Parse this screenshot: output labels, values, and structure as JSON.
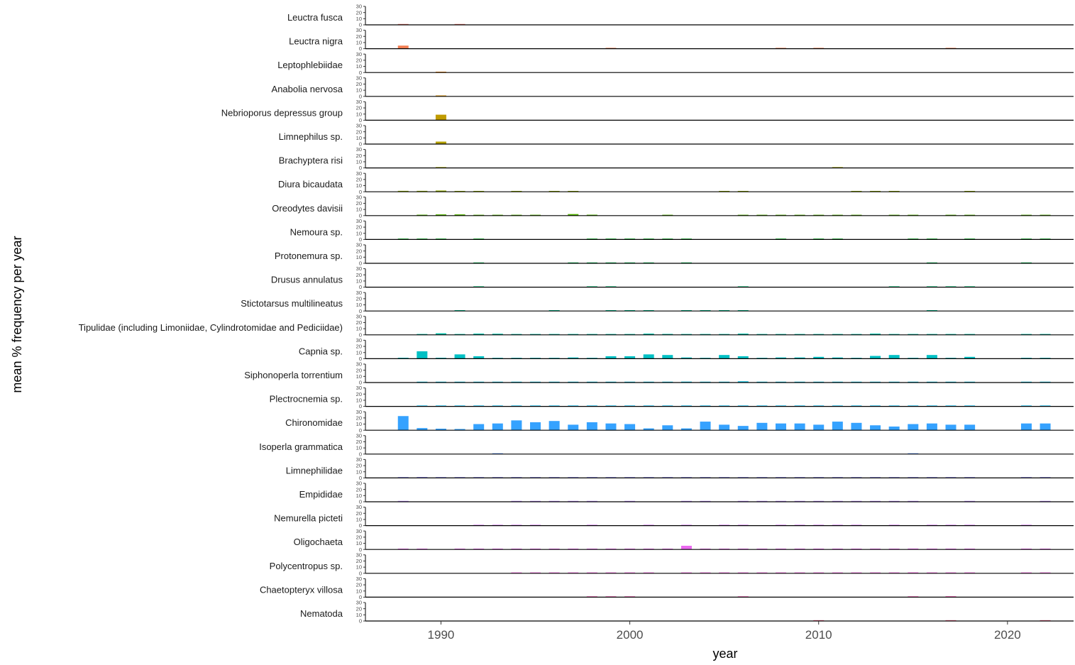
{
  "chart_data": {
    "type": "bar",
    "layout": "small-multiples",
    "xlabel": "year",
    "ylabel": "mean % frequency per year",
    "xlim": [
      1986,
      2023.5
    ],
    "xticks": [
      1990,
      2000,
      2010,
      2020
    ],
    "ylim": [
      0,
      30
    ],
    "yticks": [
      0,
      10,
      20,
      30
    ],
    "grid": false,
    "legend": "none",
    "years": [
      1988,
      1989,
      1990,
      1991,
      1992,
      1993,
      1994,
      1995,
      1996,
      1997,
      1998,
      1999,
      2000,
      2001,
      2002,
      2003,
      2004,
      2005,
      2006,
      2007,
      2008,
      2009,
      2010,
      2011,
      2012,
      2013,
      2014,
      2015,
      2016,
      2017,
      2018,
      2021,
      2022
    ],
    "series": [
      {
        "name": "Leuctra fusca",
        "color": "#F8766D",
        "values": [
          0.4,
          0,
          0,
          0.3,
          0,
          0,
          0,
          0,
          0,
          0,
          0,
          0,
          0,
          0,
          0,
          0,
          0,
          0,
          0,
          0,
          0,
          0,
          0,
          0,
          0,
          0,
          0,
          0,
          0,
          0,
          0,
          0,
          0
        ]
      },
      {
        "name": "Leuctra nigra",
        "color": "#F27D52",
        "values": [
          5,
          0,
          0,
          0,
          0,
          0,
          0,
          0,
          0,
          0,
          0,
          0.4,
          0,
          0,
          0,
          0,
          0,
          0,
          0,
          0,
          0.3,
          0,
          0.3,
          0,
          0,
          0,
          0,
          0,
          0,
          0.3,
          0,
          0,
          0
        ]
      },
      {
        "name": "Leptophlebiidae",
        "color": "#E7861B",
        "values": [
          0,
          0,
          0.3,
          0,
          0,
          0,
          0,
          0,
          0,
          0,
          0,
          0,
          0,
          0,
          0,
          0,
          0,
          0,
          0,
          0,
          0,
          0,
          0,
          0,
          0,
          0,
          0,
          0,
          0,
          0,
          0,
          0,
          0
        ]
      },
      {
        "name": "Anabolia nervosa",
        "color": "#DB8E00",
        "values": [
          0,
          0,
          1.5,
          0,
          0,
          0,
          0,
          0,
          0,
          0,
          0,
          0,
          0,
          0,
          0,
          0,
          0,
          0,
          0,
          0,
          0,
          0,
          0,
          0,
          0,
          0,
          0,
          0,
          0,
          0,
          0,
          0,
          0
        ]
      },
      {
        "name": "Nebrioporus depressus group",
        "color": "#C09B00",
        "values": [
          0,
          0,
          9,
          0,
          0,
          0,
          0,
          0,
          0,
          0,
          0,
          0,
          0,
          0,
          0,
          0,
          0,
          0,
          0,
          0,
          0,
          0,
          0,
          0,
          0,
          0,
          0,
          0,
          0,
          0,
          0,
          0,
          0
        ]
      },
      {
        "name": "Limnephilus sp.",
        "color": "#B3A000",
        "values": [
          0,
          0,
          4,
          0,
          0,
          0,
          0,
          0,
          0,
          0,
          0,
          0,
          0,
          0,
          0,
          0,
          0,
          0,
          0,
          0,
          0,
          0,
          0,
          0,
          0,
          0,
          0,
          0,
          0,
          0,
          0,
          0,
          0
        ]
      },
      {
        "name": "Brachyptera risi",
        "color": "#A3A500",
        "values": [
          0,
          0,
          0.4,
          0,
          0,
          0,
          0,
          0,
          0,
          0,
          0,
          0,
          0,
          0,
          0,
          0,
          0,
          0,
          0,
          0,
          0,
          0,
          0,
          0.4,
          0,
          0,
          0,
          0,
          0,
          0,
          0,
          0,
          0
        ]
      },
      {
        "name": "Diura bicaudata",
        "color": "#8FAA00",
        "values": [
          1.5,
          1.5,
          2,
          0.5,
          0.4,
          0,
          0.4,
          0,
          0.3,
          0.3,
          0,
          0,
          0,
          0,
          0,
          0,
          0,
          0.3,
          0.4,
          0,
          0,
          0,
          0,
          0,
          0.4,
          0.4,
          0.4,
          0,
          0,
          0,
          0.3,
          0,
          0
        ]
      },
      {
        "name": "Oreodytes davisii",
        "color": "#53B400",
        "values": [
          0,
          1.5,
          2,
          2,
          1.2,
          1,
          1,
          1,
          0,
          2.5,
          1.5,
          0,
          0,
          0,
          0.8,
          0,
          0,
          0,
          1,
          1,
          1,
          1,
          1,
          0.5,
          1,
          0,
          1,
          1,
          0,
          1,
          0.5,
          1,
          1
        ]
      },
      {
        "name": "Nemoura sp.",
        "color": "#00B81F",
        "values": [
          0.3,
          0.3,
          0.4,
          0,
          0.3,
          0,
          0,
          0,
          0,
          0,
          0.4,
          0.4,
          0.4,
          0.3,
          0.3,
          0.3,
          0,
          0,
          0,
          0,
          0.3,
          0,
          0.3,
          0.3,
          0,
          0,
          0,
          0.3,
          0.3,
          0,
          0.3,
          0.3,
          0.3
        ]
      },
      {
        "name": "Protonemura sp.",
        "color": "#00BB4E",
        "values": [
          0,
          0,
          0,
          0,
          0.4,
          0,
          0,
          0,
          0,
          0.3,
          0.3,
          0.3,
          0.3,
          0.3,
          0,
          0.3,
          0,
          0,
          0,
          0,
          0,
          0,
          0,
          0,
          0,
          0,
          0,
          0,
          0.3,
          0,
          0,
          0.5,
          0
        ]
      },
      {
        "name": "Drusus annulatus",
        "color": "#00BE70",
        "values": [
          0,
          0,
          0,
          0,
          0.5,
          0,
          0,
          0,
          0,
          0,
          0.3,
          0.5,
          0,
          0,
          0,
          0,
          0,
          0,
          0.4,
          0,
          0,
          0,
          0,
          0,
          0,
          0,
          0.4,
          0,
          0.4,
          0.4,
          0.4,
          0,
          0
        ]
      },
      {
        "name": "Stictotarsus multilineatus",
        "color": "#00C08E",
        "values": [
          0,
          0,
          0,
          0.4,
          0,
          0,
          0,
          0,
          1,
          0,
          0,
          1,
          1,
          1,
          0,
          1,
          0.5,
          1,
          0.4,
          0,
          0,
          0,
          0,
          0,
          0,
          0,
          0,
          0,
          0.5,
          0,
          0,
          0,
          0
        ]
      },
      {
        "name": "Tipulidae (including Limoniidae, Cylindrotomidae and Pediciidae)",
        "color": "#00C1AA",
        "values": [
          0,
          1,
          2.5,
          1.3,
          2,
          1.8,
          0.5,
          0.5,
          0.5,
          1,
          0.5,
          1,
          0.8,
          2,
          1.5,
          1,
          0.5,
          1,
          2,
          0.5,
          0.5,
          1,
          1,
          0.5,
          0.5,
          2,
          1,
          0.5,
          1,
          1,
          1,
          0.5,
          0.5
        ]
      },
      {
        "name": "Capnia sp.",
        "color": "#00C0C4",
        "values": [
          1.5,
          12,
          1.5,
          7,
          4,
          0.5,
          0.5,
          1,
          1,
          2,
          0.5,
          4,
          4,
          7,
          6,
          2,
          1,
          6,
          4,
          0.5,
          2,
          2,
          3,
          2,
          1,
          4.5,
          6,
          0.5,
          6,
          1,
          3,
          1,
          1
        ]
      },
      {
        "name": "Siphonoperla torrentium",
        "color": "#00BDDC",
        "values": [
          0,
          0.5,
          0.5,
          0.5,
          0.5,
          1,
          0.5,
          0.5,
          0.5,
          1,
          0.5,
          0.5,
          0.5,
          0.5,
          1,
          1.5,
          0.5,
          0.5,
          2,
          0.8,
          0.5,
          0.5,
          0.5,
          0.5,
          0.5,
          0.5,
          0.5,
          0.5,
          0.5,
          0.5,
          0.5,
          0.5,
          0.5
        ]
      },
      {
        "name": "Plectrocnemia sp.",
        "color": "#00B8F0",
        "values": [
          0,
          0.5,
          1,
          0.5,
          0.5,
          0.5,
          1,
          0.5,
          0.5,
          0.5,
          0.5,
          1,
          1,
          1,
          0.5,
          0.5,
          0.5,
          0.5,
          0.5,
          1,
          0.5,
          0.5,
          0.5,
          0.5,
          0.5,
          0.5,
          0.5,
          0.5,
          0.5,
          0.5,
          0.5,
          0.5,
          0.5
        ]
      },
      {
        "name": "Chironomidae",
        "color": "#35A2FF",
        "values": [
          23,
          3.5,
          2.5,
          2,
          10,
          11,
          16,
          13,
          15,
          9,
          13,
          11,
          10,
          3,
          8,
          3,
          14,
          9,
          7,
          12,
          11,
          11,
          9,
          14,
          12,
          8,
          6,
          10,
          11,
          9,
          9,
          11,
          11
        ]
      },
      {
        "name": "Isoperla grammatica",
        "color": "#6B9FFF",
        "values": [
          0,
          0,
          0,
          0,
          0,
          0.4,
          0,
          0,
          0,
          0,
          0,
          0,
          0,
          0,
          0,
          0,
          0,
          0,
          0,
          0,
          0,
          0,
          0,
          0,
          0,
          0,
          0,
          0.4,
          0,
          0,
          0,
          0,
          0
        ]
      },
      {
        "name": "Limnephilidae",
        "color": "#9590FF",
        "values": [
          0.3,
          1.5,
          0.3,
          0.3,
          0.3,
          0.7,
          0.3,
          0.3,
          0.3,
          0.3,
          0.7,
          0.3,
          0.3,
          0.5,
          0.3,
          0.5,
          0.3,
          0.3,
          0.3,
          0.3,
          0.3,
          0.3,
          0.3,
          0.3,
          0.3,
          0.5,
          0.5,
          0.3,
          0.5,
          0.3,
          0.5,
          0.3,
          0.5
        ]
      },
      {
        "name": "Empididae",
        "color": "#B983FF",
        "values": [
          0.4,
          0,
          0,
          0,
          0,
          0,
          0.3,
          0.3,
          0.3,
          0.3,
          0.3,
          0,
          0.3,
          0,
          0,
          1,
          0.3,
          0,
          1,
          0.3,
          0.3,
          0.3,
          0.3,
          0.3,
          1,
          0.3,
          0.3,
          0.3,
          0,
          0,
          0.3,
          0,
          0.3
        ]
      },
      {
        "name": "Nemurella picteti",
        "color": "#D575FE",
        "values": [
          0,
          0,
          0,
          0,
          0.4,
          0.8,
          0.4,
          0.3,
          0,
          0,
          0.3,
          0,
          0,
          0.8,
          0,
          0.4,
          0,
          0.3,
          0.3,
          0,
          0.3,
          0.3,
          0.3,
          0.3,
          0.3,
          0,
          0.3,
          0,
          0.3,
          0.3,
          0.3,
          0.8,
          0
        ]
      },
      {
        "name": "Oligochaeta",
        "color": "#EB69F0",
        "values": [
          0.4,
          0.4,
          0,
          0.4,
          0.4,
          0.4,
          0.4,
          0.4,
          0.4,
          0.4,
          0.4,
          0.4,
          0.8,
          0.4,
          0.4,
          6,
          0.4,
          0.4,
          0.4,
          0.8,
          0.8,
          0.8,
          1,
          0.5,
          0.8,
          1,
          1,
          1.5,
          0.5,
          1,
          1,
          1,
          0.5
        ]
      },
      {
        "name": "Polycentropus sp.",
        "color": "#F763E0",
        "values": [
          0,
          0,
          0,
          0,
          0,
          0,
          0.4,
          0.3,
          0.3,
          0.3,
          0.3,
          0.3,
          0.3,
          0.3,
          0,
          0.3,
          0.3,
          0.3,
          0.8,
          0.8,
          0.3,
          0.3,
          0.3,
          0.3,
          0.3,
          0.3,
          0.8,
          1.5,
          0.3,
          0.3,
          0.3,
          0.3,
          0.3
        ]
      },
      {
        "name": "Chaetopteryx villosa",
        "color": "#FF62BC",
        "values": [
          0,
          0,
          0,
          0,
          0,
          0,
          0,
          0,
          0,
          0,
          0.4,
          0.5,
          0.4,
          0,
          0,
          0,
          0,
          0,
          0.4,
          0,
          0,
          0,
          0,
          0,
          0,
          0,
          0,
          0.4,
          0,
          1.5,
          0,
          0,
          0
        ]
      },
      {
        "name": "Nematoda",
        "color": "#FF6C91",
        "values": [
          0,
          0,
          0,
          0,
          0,
          0,
          0,
          0,
          0,
          0,
          0,
          0,
          0,
          0,
          0,
          0,
          0,
          0,
          0,
          0,
          0,
          0,
          0.3,
          0,
          0,
          0,
          0,
          0,
          0,
          0.3,
          0,
          0,
          0.4
        ]
      }
    ]
  }
}
